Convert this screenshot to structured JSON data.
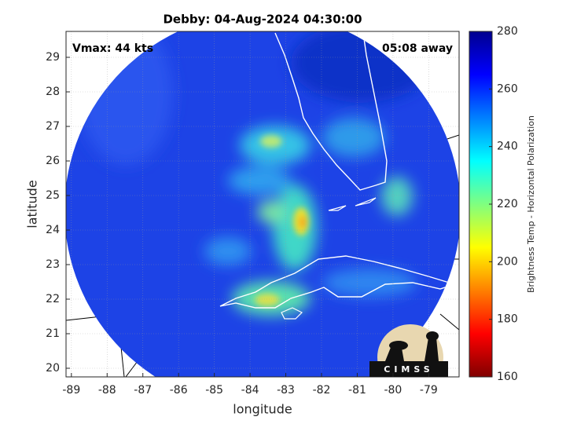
{
  "chart_data": {
    "type": "map",
    "title": "Debby: 04-Aug-2024 04:30:00",
    "annotations": [
      "Vmax: 44 kts",
      "05:08 away"
    ],
    "x_label": "longitude",
    "y_label": "latitude",
    "xlim": [
      -89.15,
      -78.15
    ],
    "ylim": [
      19.75,
      29.75
    ],
    "xticks": [
      -89,
      -88,
      -87,
      -86,
      -85,
      -84,
      -83,
      -82,
      -81,
      -80,
      -79
    ],
    "yticks": [
      20,
      21,
      22,
      23,
      24,
      25,
      26,
      27,
      28,
      29
    ],
    "grid": true,
    "colorbar": {
      "label": "Brightness Temp - Horizontal Polarization",
      "lim": [
        160,
        280
      ],
      "ticks": [
        160,
        180,
        200,
        220,
        240,
        260,
        280
      ],
      "colormap": "jet"
    },
    "logo": "CIMSS"
  }
}
